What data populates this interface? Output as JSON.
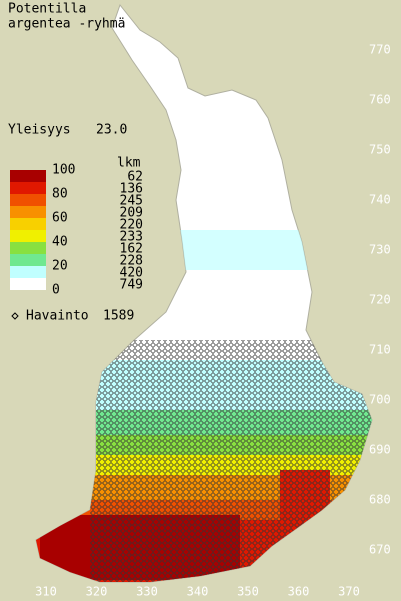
{
  "header": {
    "title": "Potentilla",
    "subtitle": "argentea -ryhmä"
  },
  "frequency": {
    "label": "Yleisyys",
    "value": "23.0"
  },
  "legend": {
    "header": "lkm",
    "scale": [
      "100",
      "80",
      "60",
      "40",
      "20",
      "0"
    ],
    "counts": [
      "62",
      "136",
      "245",
      "209",
      "220",
      "233",
      "162",
      "228",
      "420",
      "749"
    ],
    "colors": [
      "#a80000",
      "#e01800",
      "#f05000",
      "#f89000",
      "#f8d000",
      "#f0f000",
      "#88e040",
      "#70e890",
      "#c0ffff",
      "#ffffff"
    ]
  },
  "observations": {
    "label": "Havainto",
    "value": "1589"
  },
  "map": {
    "xticks": [
      310,
      320,
      330,
      340,
      350,
      360,
      370
    ],
    "yticks": [
      770,
      760,
      750,
      740,
      730,
      720,
      710,
      700,
      690,
      680,
      670
    ]
  }
}
